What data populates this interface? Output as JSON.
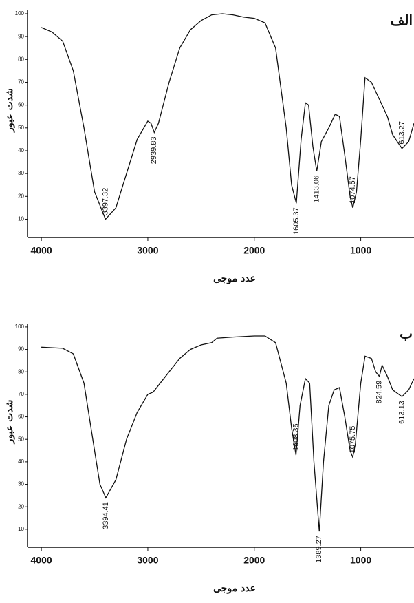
{
  "chart_data": [
    {
      "type": "line",
      "title": "الف",
      "x_label": "عدد موجی",
      "y_label": "شدت عبور",
      "color": "#111111",
      "x": [
        4000,
        3900,
        3800,
        3700,
        3600,
        3500,
        3397.32,
        3300,
        3200,
        3100,
        3000,
        2970,
        2939.83,
        2900,
        2800,
        2700,
        2600,
        2500,
        2400,
        2300,
        2200,
        2100,
        2000,
        1900,
        1800,
        1700,
        1650,
        1605.37,
        1560,
        1520,
        1490,
        1450,
        1413.06,
        1370,
        1300,
        1240,
        1200,
        1150,
        1100,
        1074.57,
        1040,
        1000,
        960,
        900,
        850,
        800,
        750,
        700,
        613.27,
        550,
        500
      ],
      "values": [
        94,
        92,
        88,
        75,
        50,
        22,
        10,
        15,
        30,
        45,
        53,
        52,
        48,
        52,
        70,
        85,
        93,
        97,
        99.5,
        100,
        99.5,
        98.5,
        98,
        96,
        85,
        50,
        25,
        17,
        45,
        61,
        60,
        42,
        31,
        44,
        50,
        56,
        55,
        38,
        20,
        15,
        22,
        45,
        72,
        70,
        65,
        60,
        55,
        47,
        41,
        44,
        52
      ],
      "annotations": [
        {
          "x": 3397.32
        },
        {
          "x": 2939.83
        },
        {
          "x": 1605.37
        },
        {
          "x": 1413.06
        },
        {
          "x": 1074.57
        },
        {
          "x": 613.27
        }
      ],
      "xlim": [
        4130,
        500
      ],
      "xticks": [
        4000,
        3000,
        2000,
        1000
      ],
      "ylim": [
        2,
        101.5
      ],
      "yticks": [
        10,
        20,
        30,
        40,
        50,
        60,
        70,
        80,
        90,
        100
      ]
    },
    {
      "type": "line",
      "title": "ب",
      "x_label": "عدد موجی",
      "y_label": "شدت عبور",
      "color": "#111111",
      "x": [
        4000,
        3800,
        3700,
        3600,
        3500,
        3450,
        3394.41,
        3300,
        3200,
        3100,
        3000,
        2950,
        2900,
        2800,
        2700,
        2600,
        2500,
        2400,
        2350,
        2200,
        2000,
        1900,
        1800,
        1700,
        1650,
        1608.35,
        1570,
        1520,
        1480,
        1440,
        1389.27,
        1350,
        1300,
        1250,
        1200,
        1150,
        1100,
        1075.75,
        1050,
        1000,
        960,
        900,
        860,
        824.59,
        800,
        750,
        700,
        613.13,
        550,
        500
      ],
      "values": [
        91,
        90.5,
        88,
        75,
        45,
        30,
        24,
        32,
        50,
        62,
        70,
        71,
        74,
        80,
        86,
        90,
        92,
        93,
        95,
        95.5,
        96,
        96,
        93,
        75,
        55,
        43,
        65,
        77,
        75,
        40,
        9,
        40,
        65,
        72,
        73,
        60,
        45,
        42,
        48,
        75,
        87,
        86,
        80,
        78,
        83,
        78,
        72,
        69,
        72,
        77
      ],
      "annotations": [
        {
          "x": 3394.41
        },
        {
          "x": 1608.35
        },
        {
          "x": 1389.27
        },
        {
          "x": 1075.75
        },
        {
          "x": 824.59
        },
        {
          "x": 613.13
        }
      ],
      "xlim": [
        4130,
        500
      ],
      "xticks": [
        4000,
        3000,
        2000,
        1000
      ],
      "ylim": [
        2,
        101.5
      ],
      "yticks": [
        10,
        20,
        30,
        40,
        50,
        60,
        70,
        80,
        90,
        100
      ]
    }
  ]
}
